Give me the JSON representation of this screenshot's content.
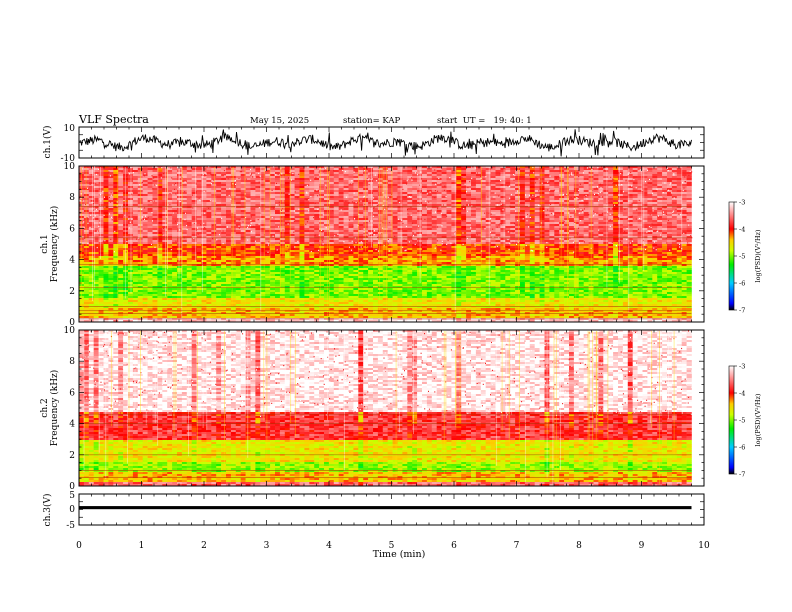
{
  "header": {
    "title": "VLF Spectra",
    "date": "May 15, 2025",
    "station": "station= KAP",
    "start": "start  UT =   19: 40: 1"
  },
  "chart_data": [
    {
      "type": "line",
      "id": "ch1-waveform",
      "ylabel": "ch.1(V)",
      "ylim": [
        -10,
        10
      ],
      "y_tick_labels": [
        "10",
        "-10"
      ],
      "y_ticks": [
        10,
        -10
      ],
      "xlim": [
        0,
        10
      ],
      "series": [
        {
          "name": "ch.1",
          "description_values": "noisy waveform centered near 0 V with spikes to about ±8 V",
          "values_min": -9,
          "values_max": 9,
          "x_end": 9.8
        }
      ]
    },
    {
      "type": "heatmap",
      "id": "ch1-spectrogram",
      "ylabel_line1": "ch.1",
      "ylabel_line2": "Frequency (kHz)",
      "ylim": [
        0,
        10
      ],
      "y_ticks": [
        0,
        2,
        4,
        6,
        8,
        10
      ],
      "y_tick_labels": [
        "0",
        "2",
        "4",
        "6",
        "8",
        "10"
      ],
      "xlim": [
        0,
        10
      ],
      "data_x_end": 9.8,
      "bands": [
        {
          "f0": 0,
          "f1": 0.3,
          "level": -3.2
        },
        {
          "f0": 0.3,
          "f1": 0.9,
          "level": -4.4
        },
        {
          "f0": 0.9,
          "f1": 1.5,
          "level": -4.6
        },
        {
          "f0": 1.5,
          "f1": 3.6,
          "level": -5.0
        },
        {
          "f0": 3.6,
          "f1": 4.2,
          "level": -4.3
        },
        {
          "f0": 4.2,
          "f1": 5.0,
          "level": -4.1
        },
        {
          "f0": 5.0,
          "f1": 10,
          "level": -3.6
        }
      ],
      "lines_khz": [
        0.2,
        0.55,
        0.75,
        1.0,
        2.2,
        3.7,
        5.4,
        7.4
      ],
      "colorbar": {
        "label": "log(PSD)(V²/Hz)",
        "range": [
          -7,
          -3
        ],
        "ticks": [
          -3,
          -4,
          -5,
          -6,
          -7
        ],
        "tick_labels": [
          "-3",
          "-4",
          "-5",
          "-6",
          "-7"
        ]
      }
    },
    {
      "type": "heatmap",
      "id": "ch2-spectrogram",
      "ylabel_line1": "ch.2",
      "ylabel_line2": "Frequency (kHz)",
      "ylim": [
        0,
        10
      ],
      "y_ticks": [
        0,
        2,
        4,
        6,
        8,
        10
      ],
      "y_tick_labels": [
        "0",
        "2",
        "4",
        "6",
        "8",
        "10"
      ],
      "xlim": [
        0,
        10
      ],
      "data_x_end": 9.8,
      "bands": [
        {
          "f0": 0,
          "f1": 0.3,
          "level": -3.6
        },
        {
          "f0": 0.3,
          "f1": 0.9,
          "level": -4.4
        },
        {
          "f0": 0.9,
          "f1": 1.6,
          "level": -4.9
        },
        {
          "f0": 1.6,
          "f1": 3.0,
          "level": -4.6
        },
        {
          "f0": 3.0,
          "f1": 4.8,
          "level": -3.8
        },
        {
          "f0": 4.8,
          "f1": 10,
          "level": -3.1
        }
      ],
      "lines_khz": [
        0.55,
        1.0,
        2.0,
        4.0,
        4.6
      ],
      "colorbar": {
        "label": "log(PSD)(V²/Hz)",
        "range": [
          -7,
          -3
        ],
        "ticks": [
          -3,
          -4,
          -5,
          -6,
          -7
        ],
        "tick_labels": [
          "-3",
          "-4",
          "-5",
          "-6",
          "-7"
        ]
      }
    },
    {
      "type": "line",
      "id": "ch3-waveform",
      "ylabel": "ch.3(V)",
      "ylim": [
        -5,
        5
      ],
      "y_ticks": [
        5,
        0,
        -5
      ],
      "y_tick_labels": [
        "5",
        "0",
        "-5"
      ],
      "xlim": [
        0,
        10
      ],
      "xlabel": "Time (min)",
      "x_ticks": [
        0,
        1,
        2,
        3,
        4,
        5,
        6,
        7,
        8,
        9,
        10
      ],
      "x_tick_labels": [
        "0",
        "1",
        "2",
        "3",
        "4",
        "5",
        "6",
        "7",
        "8",
        "9",
        "10"
      ],
      "series": [
        {
          "name": "ch.3",
          "level": 0.6,
          "band_halfwidth": 0.5,
          "x_end": 9.8
        }
      ]
    }
  ]
}
